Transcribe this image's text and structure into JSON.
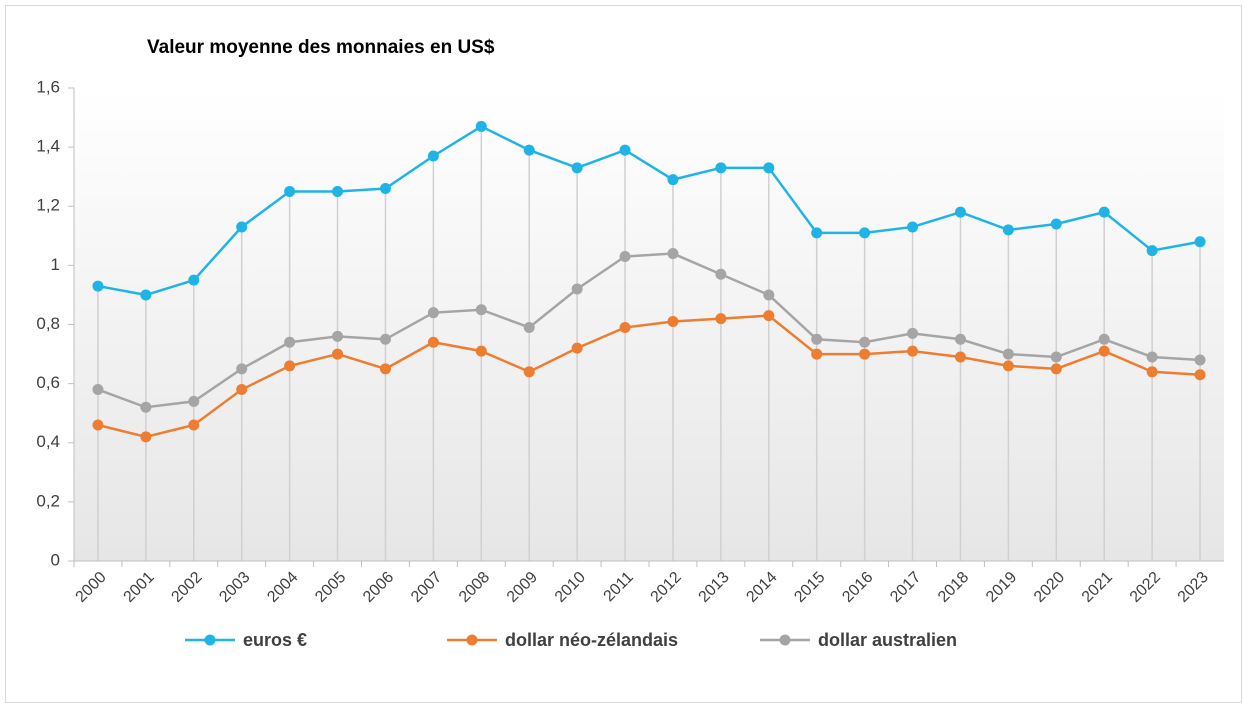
{
  "chart_data": {
    "type": "line",
    "title": "Valeur moyenne des monnaies en US$",
    "categories": [
      "2000",
      "2001",
      "2002",
      "2003",
      "2004",
      "2005",
      "2006",
      "2007",
      "2008",
      "2009",
      "2010",
      "2011",
      "2012",
      "2013",
      "2014",
      "2015",
      "2016",
      "2017",
      "2018",
      "2019",
      "2020",
      "2021",
      "2022",
      "2023"
    ],
    "series": [
      {
        "name": "euros €",
        "color": "#1fb4e6",
        "values": [
          0.93,
          0.9,
          0.95,
          1.13,
          1.25,
          1.25,
          1.26,
          1.37,
          1.47,
          1.39,
          1.33,
          1.39,
          1.29,
          1.33,
          1.33,
          1.11,
          1.11,
          1.13,
          1.18,
          1.12,
          1.14,
          1.18,
          1.05,
          1.08
        ]
      },
      {
        "name": "dollar néo-zélandais",
        "color": "#ed7d31",
        "values": [
          0.46,
          0.42,
          0.46,
          0.58,
          0.66,
          0.7,
          0.65,
          0.74,
          0.71,
          0.64,
          0.72,
          0.79,
          0.81,
          0.82,
          0.83,
          0.7,
          0.7,
          0.71,
          0.69,
          0.66,
          0.65,
          0.71,
          0.64,
          0.63
        ]
      },
      {
        "name": "dollar australien",
        "color": "#a5a5a5",
        "values": [
          0.58,
          0.52,
          0.54,
          0.65,
          0.74,
          0.76,
          0.75,
          0.84,
          0.85,
          0.79,
          0.92,
          1.03,
          1.04,
          0.97,
          0.9,
          0.75,
          0.74,
          0.77,
          0.75,
          0.7,
          0.69,
          0.75,
          0.69,
          0.68
        ]
      }
    ],
    "ylim": [
      0,
      1.6
    ],
    "yticks": [
      0,
      {
        "value": 0.2,
        "label": "0,2"
      },
      {
        "value": 0.4,
        "label": "0,4"
      },
      {
        "value": 0.6,
        "label": "0,6"
      },
      {
        "value": 0.8,
        "label": "0,8"
      },
      1,
      {
        "value": 1.2,
        "label": "1,2"
      },
      {
        "value": 1.4,
        "label": "1,4"
      },
      {
        "value": 1.6,
        "label": "1,6"
      }
    ],
    "legend": "bottom",
    "drop_lines": true
  }
}
